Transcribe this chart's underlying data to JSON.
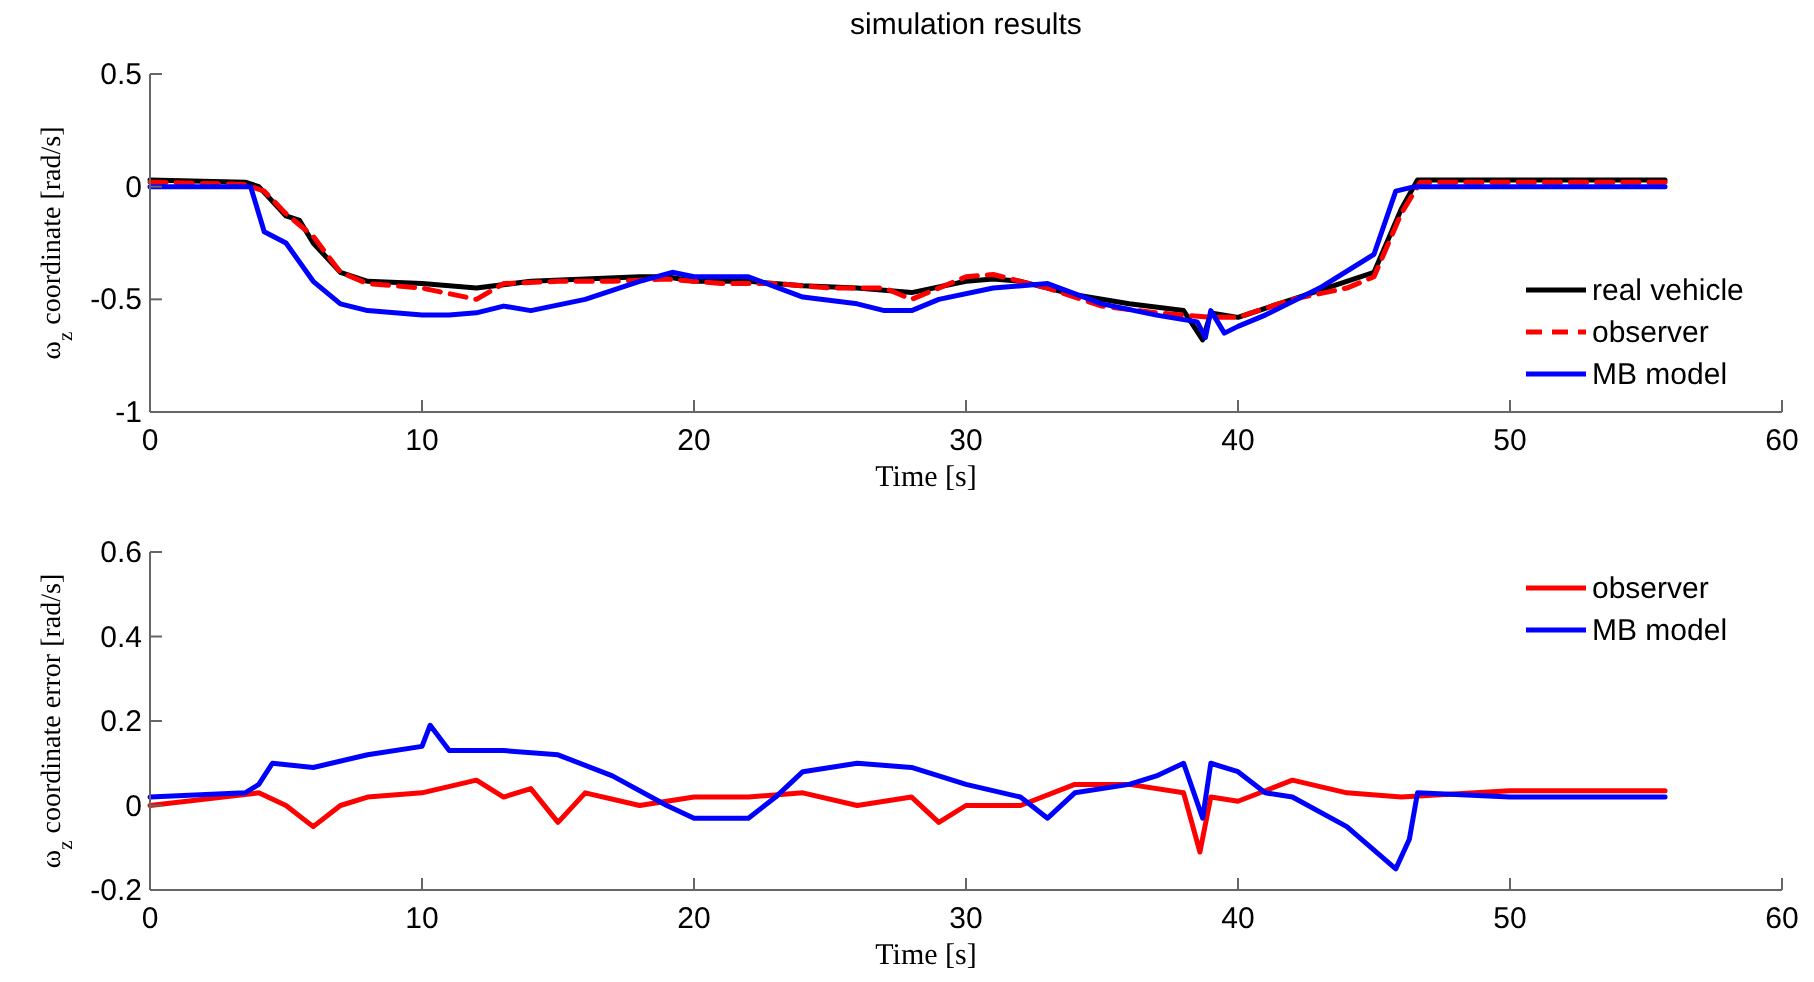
{
  "chart_data": [
    {
      "type": "line",
      "title": "simulation results",
      "xlabel": "Time [s]",
      "ylabel": "ω$_{z}$ coordinate [rad/s]",
      "xlim": [
        0,
        60
      ],
      "xticks": [
        0,
        10,
        20,
        30,
        40,
        50,
        60
      ],
      "ylim": [
        -1,
        0.5
      ],
      "yticks": [
        -1,
        -0.5,
        0,
        0.5
      ],
      "grid": false,
      "legend": "bottom right",
      "marker": "none",
      "series": [
        {
          "name": "real vehicle",
          "color": "#000000",
          "line_style": "solid",
          "x": [
            0,
            3.5,
            4,
            5,
            5.5,
            6,
            7,
            8,
            10,
            12,
            14,
            16,
            18,
            19,
            20,
            22,
            24,
            26,
            28,
            30,
            31,
            32,
            34,
            36,
            38,
            38.7,
            39,
            40,
            42,
            44,
            45,
            46,
            46.6,
            50,
            55.7
          ],
          "values": [
            0.03,
            0.02,
            0,
            -0.13,
            -0.15,
            -0.25,
            -0.38,
            -0.42,
            -0.43,
            -0.45,
            -0.42,
            -0.41,
            -0.4,
            -0.4,
            -0.42,
            -0.42,
            -0.44,
            -0.45,
            -0.47,
            -0.42,
            -0.41,
            -0.42,
            -0.48,
            -0.52,
            -0.55,
            -0.68,
            -0.56,
            -0.58,
            -0.5,
            -0.42,
            -0.38,
            -0.1,
            0.03,
            0.03,
            0.03
          ]
        },
        {
          "name": "observer",
          "color": "#ff0000",
          "line_style": "dashed",
          "x": [
            0,
            3.5,
            4.2,
            5,
            6,
            7,
            8,
            10,
            12,
            13,
            15,
            17,
            19,
            21,
            23,
            25,
            27,
            28,
            30,
            31,
            33,
            35,
            37,
            39,
            40,
            42,
            44,
            45,
            46,
            46.7,
            55.7
          ],
          "values": [
            0.02,
            0.01,
            -0.02,
            -0.12,
            -0.22,
            -0.38,
            -0.43,
            -0.45,
            -0.5,
            -0.43,
            -0.42,
            -0.42,
            -0.41,
            -0.43,
            -0.43,
            -0.45,
            -0.45,
            -0.5,
            -0.4,
            -0.39,
            -0.45,
            -0.53,
            -0.56,
            -0.58,
            -0.58,
            -0.5,
            -0.45,
            -0.4,
            -0.12,
            0.02,
            0.02
          ]
        },
        {
          "name": "MB model",
          "color": "#0000ff",
          "line_style": "solid",
          "x": [
            0,
            3.7,
            4.2,
            5,
            6,
            7,
            8,
            10,
            11,
            12,
            13,
            14,
            16,
            18,
            19.2,
            20,
            22,
            24,
            26,
            27,
            28,
            29,
            31,
            33,
            35,
            37,
            38.5,
            38.8,
            39,
            39.5,
            40,
            41,
            43,
            45,
            45.8,
            46.5,
            55.7
          ],
          "values": [
            0,
            0,
            -0.2,
            -0.25,
            -0.42,
            -0.52,
            -0.55,
            -0.57,
            -0.57,
            -0.56,
            -0.53,
            -0.55,
            -0.5,
            -0.42,
            -0.38,
            -0.4,
            -0.4,
            -0.49,
            -0.52,
            -0.55,
            -0.55,
            -0.5,
            -0.45,
            -0.43,
            -0.52,
            -0.57,
            -0.6,
            -0.67,
            -0.55,
            -0.65,
            -0.62,
            -0.57,
            -0.45,
            -0.3,
            -0.02,
            0,
            0
          ]
        }
      ]
    },
    {
      "type": "line",
      "xlabel": "Time [s]",
      "ylabel": "ω$_{z}$ coordinate error [rad/s]",
      "xlim": [
        0,
        60
      ],
      "xticks": [
        0,
        10,
        20,
        30,
        40,
        50,
        60
      ],
      "ylim": [
        -0.2,
        0.6
      ],
      "yticks": [
        -0.2,
        0,
        0.2,
        0.4,
        0.6
      ],
      "grid": false,
      "legend": "top right",
      "marker": "none",
      "series": [
        {
          "name": "observer",
          "color": "#ff0000",
          "line_style": "solid",
          "x": [
            0,
            4,
            5,
            6,
            7,
            8,
            10,
            12,
            13,
            14,
            15,
            16,
            18,
            20,
            22,
            24,
            26,
            28,
            29,
            30,
            32,
            34,
            36,
            38,
            38.6,
            39,
            40,
            42,
            44,
            46,
            50,
            55.7
          ],
          "values": [
            0,
            0.03,
            0,
            -0.05,
            0,
            0.02,
            0.03,
            0.06,
            0.02,
            0.04,
            -0.04,
            0.03,
            0,
            0.02,
            0.02,
            0.03,
            0,
            0.02,
            -0.04,
            0,
            0,
            0.05,
            0.05,
            0.03,
            -0.11,
            0.02,
            0.01,
            0.06,
            0.03,
            0.02,
            0.035,
            0.035
          ]
        },
        {
          "name": "MB model",
          "color": "#0000ff",
          "line_style": "solid",
          "x": [
            0,
            3.5,
            4,
            4.5,
            6,
            8,
            10,
            10.3,
            11,
            13,
            15,
            17,
            19,
            20,
            22,
            23,
            24,
            26,
            28,
            30,
            32,
            33,
            34,
            36,
            37,
            38,
            38.7,
            39,
            40,
            41,
            42,
            44,
            45.8,
            46.3,
            46.6,
            50,
            55.7
          ],
          "values": [
            0.02,
            0.03,
            0.05,
            0.1,
            0.09,
            0.12,
            0.14,
            0.19,
            0.13,
            0.13,
            0.12,
            0.07,
            0,
            -0.03,
            -0.03,
            0.02,
            0.08,
            0.1,
            0.09,
            0.05,
            0.02,
            -0.03,
            0.03,
            0.05,
            0.07,
            0.1,
            -0.03,
            0.1,
            0.08,
            0.03,
            0.02,
            -0.05,
            -0.15,
            -0.08,
            0.03,
            0.02,
            0.02
          ]
        }
      ]
    }
  ]
}
